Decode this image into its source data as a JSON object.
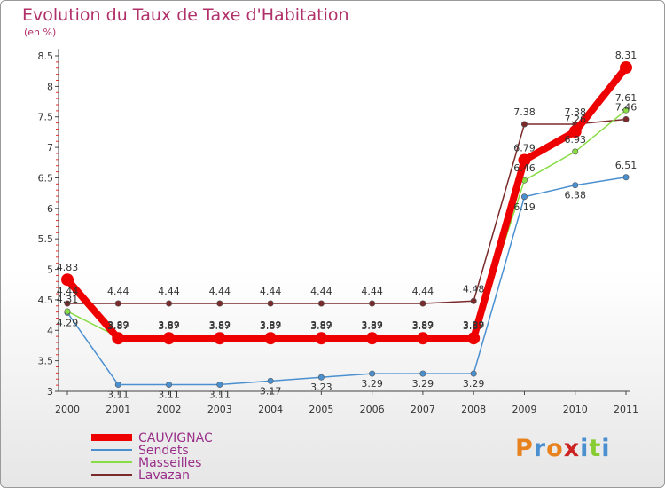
{
  "chart_data": {
    "type": "line",
    "title": "Evolution du Taux de Taxe d'Habitation",
    "subtitle": "(en %)",
    "xlabel": "",
    "ylabel": "",
    "ylim": [
      3,
      8.5
    ],
    "yticks": [
      "3",
      "3.5",
      "4",
      "4.5",
      "5",
      "5.5",
      "6",
      "6.5",
      "7",
      "7.5",
      "8",
      "8.5"
    ],
    "x": [
      "2000",
      "2001",
      "2002",
      "2003",
      "2004",
      "2005",
      "2006",
      "2007",
      "2008",
      "2009",
      "2010",
      "2011"
    ],
    "grid": false,
    "legend_position": "bottom-left",
    "series": [
      {
        "name": "CAUVIGNAC",
        "color": "#ee0000",
        "values": [
          4.83,
          3.87,
          3.87,
          3.87,
          3.87,
          3.87,
          3.87,
          3.87,
          3.87,
          6.79,
          7.26,
          8.31
        ],
        "labels": [
          "4.83",
          "3.87",
          "3.87",
          "3.87",
          "3.87",
          "3.87",
          "3.87",
          "3.87",
          "3.87",
          "6.79",
          "7.26",
          "8.31"
        ]
      },
      {
        "name": "Sendets",
        "color": "#4a90d0",
        "values": [
          4.29,
          3.11,
          3.11,
          3.11,
          3.17,
          3.23,
          3.29,
          3.29,
          3.29,
          6.19,
          6.38,
          6.51
        ],
        "labels": [
          "4.29",
          "3.11",
          "3.11",
          "3.11",
          "3.17",
          "3.23",
          "3.29",
          "3.29",
          "3.29",
          "6.19",
          "6.38",
          "6.51"
        ]
      },
      {
        "name": "Masseilles",
        "color": "#88dd44",
        "values": [
          4.31,
          3.89,
          3.89,
          3.89,
          3.89,
          3.89,
          3.89,
          3.89,
          3.89,
          6.46,
          6.93,
          7.61
        ],
        "labels": [
          "4.31",
          "3.89",
          "3.89",
          "3.89",
          "3.89",
          "3.89",
          "3.89",
          "3.89",
          "3.89",
          "6.46",
          "6.93",
          "7.61"
        ]
      },
      {
        "name": "Lavazan",
        "color": "#7a2a2a",
        "values": [
          4.44,
          4.44,
          4.44,
          4.44,
          4.44,
          4.44,
          4.44,
          4.44,
          4.48,
          7.38,
          7.38,
          7.46
        ],
        "labels": [
          "4.44",
          "4.44",
          "4.44",
          "4.44",
          "4.44",
          "4.44",
          "4.44",
          "4.44",
          "4.48",
          "7.38",
          "7.38",
          "7.46"
        ]
      }
    ]
  },
  "logo": {
    "text": "Proxiti",
    "letters": [
      "P",
      "r",
      "o",
      "x",
      "i",
      "t",
      "i"
    ],
    "colors": [
      "#e8821e",
      "#4a90d0",
      "#e8821e",
      "#cc2222",
      "#4a90d0",
      "#88cc33",
      "#4a90d0"
    ]
  }
}
